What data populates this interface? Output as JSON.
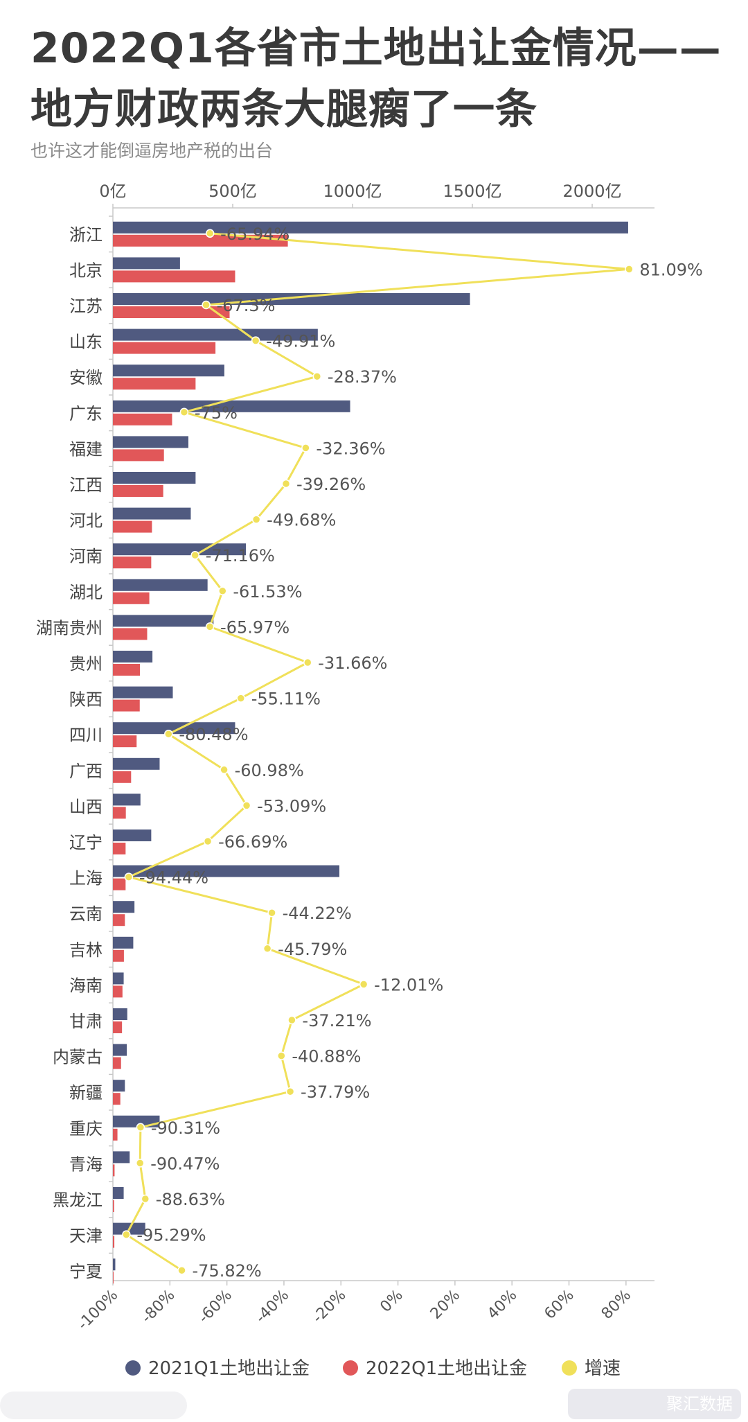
{
  "title_line1": "2022Q1各省市土地出让金情况——",
  "title_line2": "地方财政两条大腿瘸了一条",
  "subtitle": "也许这才能倒逼房地产税的出台",
  "watermark": "聚汇数据",
  "chart_data": {
    "type": "bar+line",
    "categories": [
      "浙江",
      "北京",
      "江苏",
      "山东",
      "安徽",
      "广东",
      "福建",
      "江西",
      "河北",
      "河南",
      "湖北",
      "湖南贵州",
      "贵州",
      "陕西",
      "四川",
      "广西",
      "山西",
      "辽宁",
      "上海",
      "云南",
      "吉林",
      "海南",
      "甘肃",
      "内蒙古",
      "新疆",
      "重庆",
      "青海",
      "黑龙江",
      "天津",
      "宁夏"
    ],
    "top_axis": {
      "ticks": [
        0,
        500,
        1000,
        1500,
        2000
      ],
      "tick_labels": [
        "0亿",
        "500亿",
        "1000亿",
        "1500亿",
        "2000亿"
      ],
      "range": [
        0,
        2260
      ],
      "unit": "亿"
    },
    "bottom_axis": {
      "ticks": [
        -100,
        -80,
        -60,
        -40,
        -20,
        0,
        20,
        40,
        60,
        80
      ],
      "tick_labels": [
        "-100%",
        "-80%",
        "-60%",
        "-40%",
        "-20%",
        "0%",
        "20%",
        "40%",
        "60%",
        "80%"
      ],
      "range": [
        -100,
        90
      ]
    },
    "series": [
      {
        "name": "2021Q1土地出让金",
        "kind": "bar",
        "color": "#505a80",
        "values": [
          2150,
          280,
          1490,
          855,
          465,
          990,
          315,
          345,
          325,
          555,
          395,
          420,
          165,
          250,
          510,
          195,
          115,
          160,
          945,
          90,
          85,
          45,
          60,
          58,
          50,
          195,
          70,
          45,
          135,
          10
        ]
      },
      {
        "name": "2022Q1土地出让金",
        "kind": "bar",
        "color": "#e15759",
        "values": [
          730,
          510,
          487,
          428,
          345,
          247,
          213,
          210,
          163,
          160,
          152,
          143,
          113,
          112,
          99,
          76,
          54,
          53,
          53,
          50,
          46,
          40,
          38,
          34,
          31,
          19,
          7,
          5,
          6,
          2
        ]
      },
      {
        "name": "增速",
        "kind": "line",
        "color": "#f0e05a",
        "values": [
          -65.94,
          81.09,
          -67.3,
          -49.91,
          -28.37,
          -75,
          -32.36,
          -39.26,
          -49.68,
          -71.16,
          -61.53,
          -65.97,
          -31.66,
          -55.11,
          -80.48,
          -60.98,
          -53.09,
          -66.69,
          -94.44,
          -44.22,
          -45.79,
          -12.01,
          -37.21,
          -40.88,
          -37.79,
          -90.31,
          -90.47,
          -88.63,
          -95.29,
          -75.82
        ],
        "labels": [
          "-65.94%",
          "81.09%",
          "-67.3%",
          "-49.91%",
          "-28.37%",
          "-75%",
          "-32.36%",
          "-39.26%",
          "-49.68%",
          "-71.16%",
          "-61.53%",
          "-65.97%",
          "-31.66%",
          "-55.11%",
          "-80.48%",
          "-60.98%",
          "-53.09%",
          "-66.69%",
          "-94.44%",
          "-44.22%",
          "-45.79%",
          "-12.01%",
          "-37.21%",
          "-40.88%",
          "-37.79%",
          "-90.31%",
          "-90.47%",
          "-88.63%",
          "-95.29%",
          "-75.82%"
        ]
      }
    ],
    "legend_position": "bottom",
    "grid": false
  }
}
